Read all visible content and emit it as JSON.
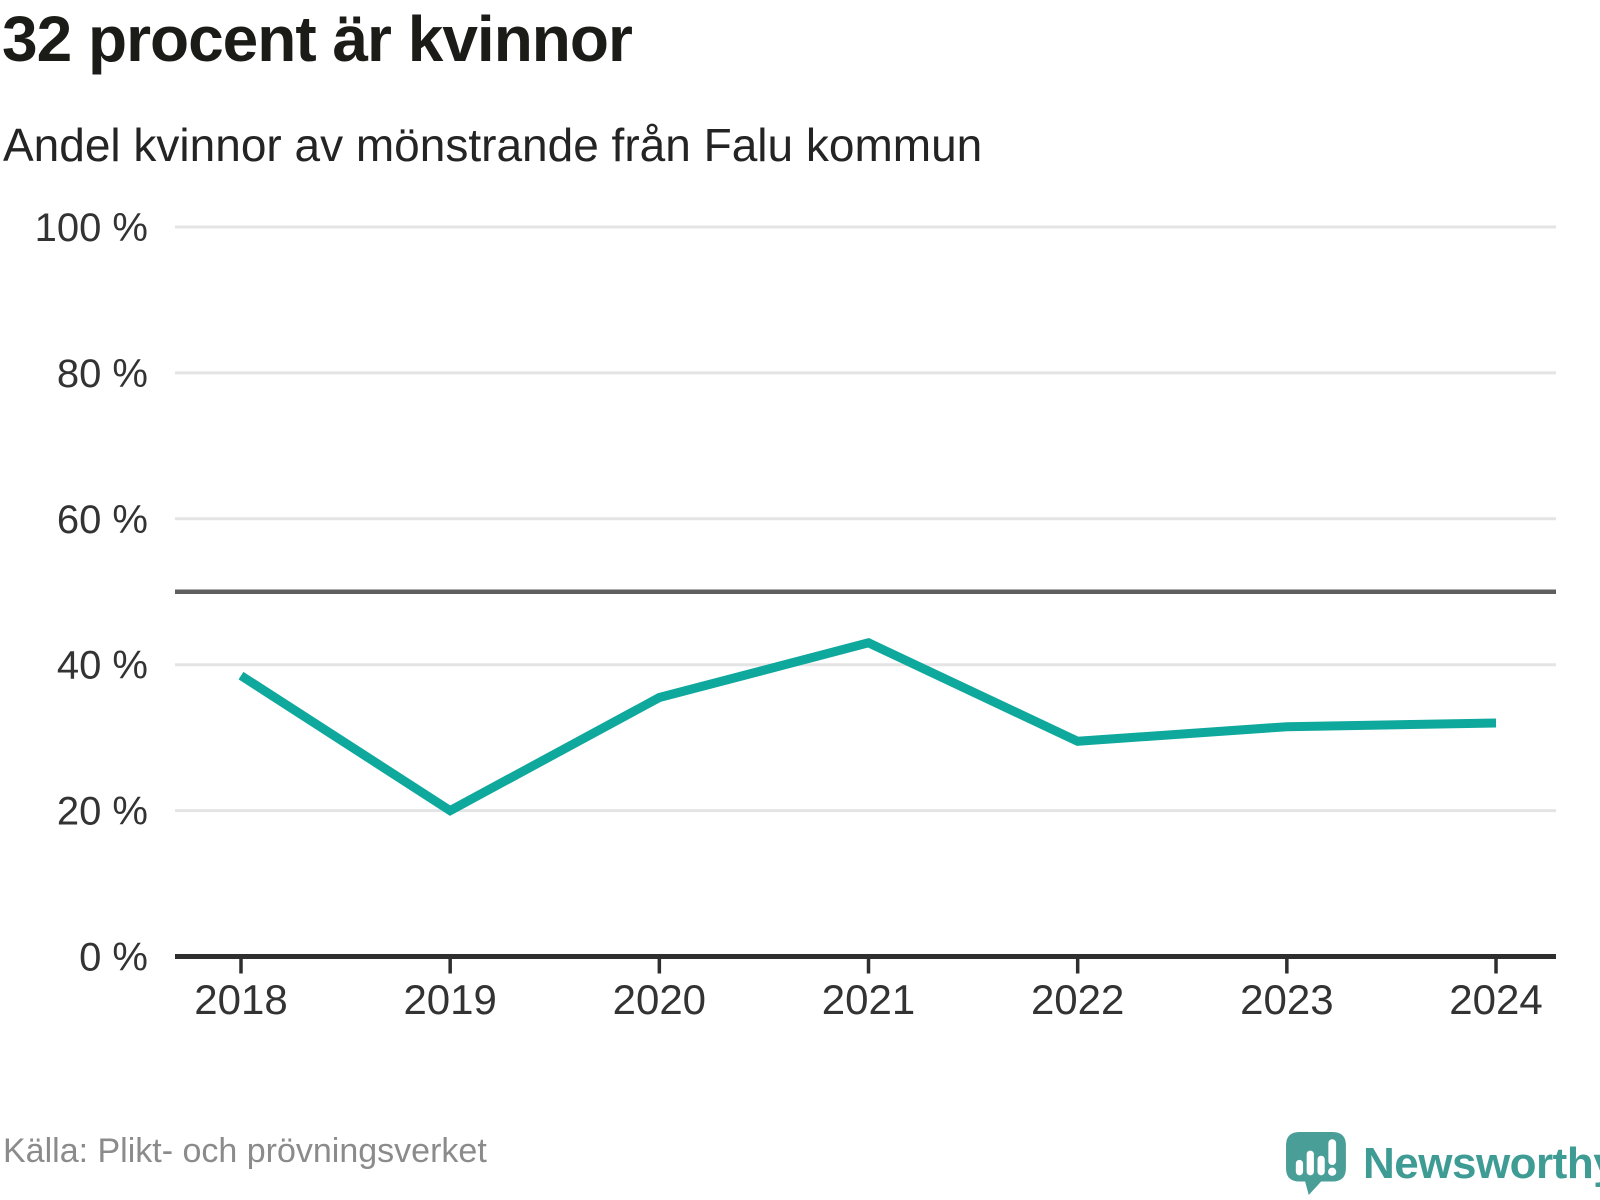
{
  "title": "32 procent är kvinnor",
  "subtitle": "Andel kvinnor av mönstrande från Falu kommun",
  "footer": {
    "source": "Källa: Plikt- och prövningsverket"
  },
  "brand": {
    "name": "Newsworthy",
    "icon": "speech-bubble-bar-chart-exclamation-icon",
    "wordmark_color": "#3e9c95",
    "icon_color": "#4a9e98"
  },
  "chart_data": {
    "type": "line",
    "title": "32 procent är kvinnor",
    "subtitle": "Andel kvinnor av mönstrande från Falu kommun",
    "x": [
      2018,
      2019,
      2020,
      2021,
      2022,
      2023,
      2024
    ],
    "series": [
      {
        "name": "Andel kvinnor av mönstrande",
        "color": "#0ea89d",
        "values": [
          38.5,
          20,
          35.5,
          43,
          29.5,
          31.5,
          32
        ]
      }
    ],
    "ylim": [
      0,
      100
    ],
    "yticks": [
      0,
      20,
      40,
      60,
      80,
      100
    ],
    "ytick_format": "{v} %",
    "xlabel": "",
    "ylabel": "",
    "reference_line": 50,
    "grid": "horizontal",
    "legend": "none",
    "colors": {
      "grid": "#e4e4e4",
      "axis": "#2e2e2e",
      "reference": "#5f5f5f",
      "tick_label": "#333333"
    }
  }
}
